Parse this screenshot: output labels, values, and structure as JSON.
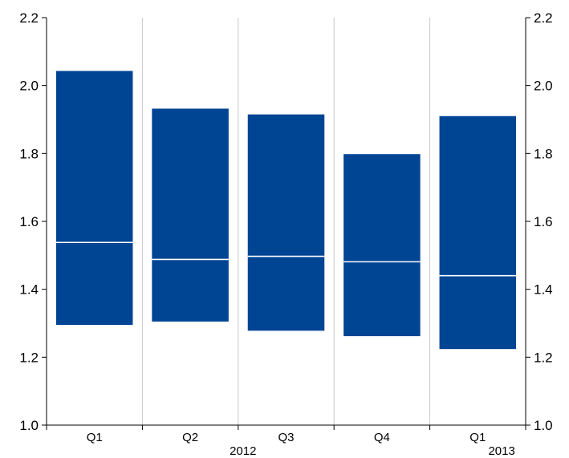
{
  "chart_data": {
    "type": "bar",
    "subtype": "floating-range-with-median",
    "categories": [
      "Q1",
      "Q2",
      "Q3",
      "Q4",
      "Q1"
    ],
    "year_labels": [
      {
        "label": "2012",
        "after_category_index": 2
      },
      {
        "label": "2013",
        "after_category_index": 4
      }
    ],
    "series": [
      {
        "low": [
          1.295,
          1.305,
          1.278,
          1.262,
          1.224
        ],
        "median": [
          1.538,
          1.488,
          1.497,
          1.481,
          1.44
        ],
        "high": [
          2.043,
          1.932,
          1.915,
          1.798,
          1.91
        ]
      }
    ],
    "ylim": [
      1.0,
      2.2
    ],
    "y_ticks": [
      "1.0",
      "1.2",
      "1.4",
      "1.6",
      "1.8",
      "2.0",
      "2.2"
    ],
    "y_tick_values": [
      1.0,
      1.2,
      1.4,
      1.6,
      1.8,
      2.0,
      2.2
    ],
    "y_axis_sides": [
      "left",
      "right"
    ],
    "grid": {
      "vertical": true,
      "horizontal": false
    },
    "colors": {
      "bar": "#004494",
      "median": "#ffffff",
      "grid": "#c8c8c8",
      "axis": "#000000"
    }
  }
}
